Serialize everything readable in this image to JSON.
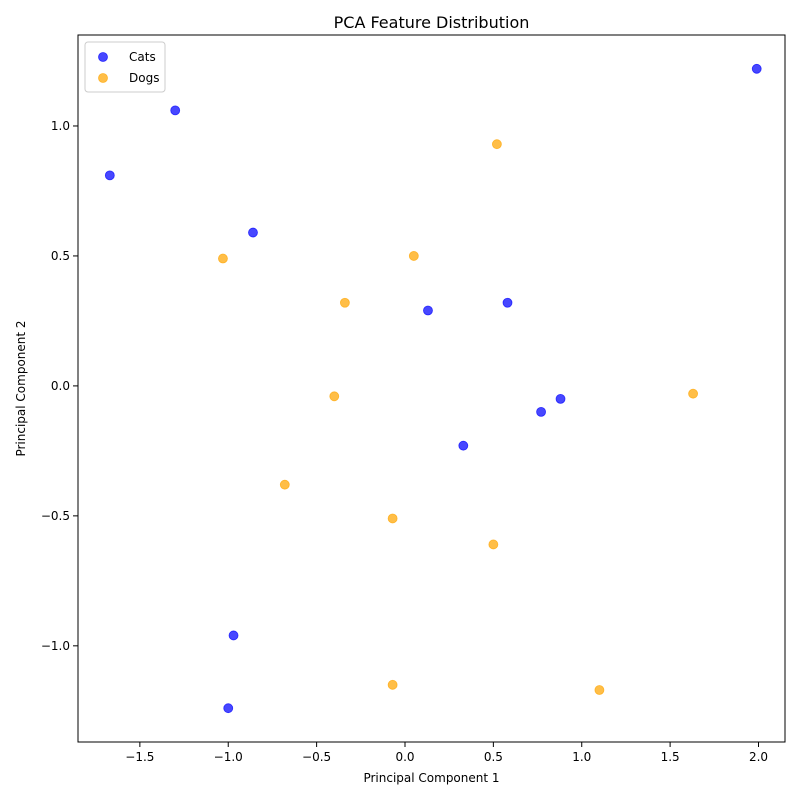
{
  "chart_data": {
    "type": "scatter",
    "title": "PCA Feature Distribution",
    "xlabel": "Principal Component 1",
    "ylabel": "Principal Component 2",
    "xlim": [
      -1.85,
      2.15
    ],
    "ylim": [
      -1.37,
      1.35
    ],
    "xticks": [
      -1.5,
      -1.0,
      -0.5,
      0.0,
      0.5,
      1.0,
      1.5,
      2.0
    ],
    "yticks": [
      -1.0,
      -0.5,
      0.0,
      0.5,
      1.0
    ],
    "xtick_labels": [
      "−1.5",
      "−1.0",
      "−0.5",
      "0.0",
      "0.5",
      "1.0",
      "1.5",
      "2.0"
    ],
    "ytick_labels": [
      "−1.0",
      "−0.5",
      "0.0",
      "0.5",
      "1.0"
    ],
    "grid": false,
    "legend_position": "upper-left",
    "series": [
      {
        "name": "Cats",
        "color": "#0000ff",
        "points": [
          [
            -1.67,
            0.81
          ],
          [
            -1.3,
            1.06
          ],
          [
            -0.86,
            0.59
          ],
          [
            0.13,
            0.29
          ],
          [
            0.58,
            0.32
          ],
          [
            0.88,
            -0.05
          ],
          [
            0.77,
            -0.1
          ],
          [
            0.33,
            -0.23
          ],
          [
            -0.97,
            -0.96
          ],
          [
            -1.0,
            -1.24
          ],
          [
            1.99,
            1.22
          ]
        ]
      },
      {
        "name": "Dogs",
        "color": "#ffa500",
        "points": [
          [
            0.52,
            0.93
          ],
          [
            -1.03,
            0.49
          ],
          [
            0.05,
            0.5
          ],
          [
            -0.34,
            0.32
          ],
          [
            -0.4,
            -0.04
          ],
          [
            1.63,
            -0.03
          ],
          [
            -0.68,
            -0.38
          ],
          [
            -0.07,
            -0.51
          ],
          [
            0.5,
            -0.61
          ],
          [
            -0.07,
            -1.15
          ],
          [
            1.1,
            -1.17
          ]
        ]
      }
    ]
  }
}
